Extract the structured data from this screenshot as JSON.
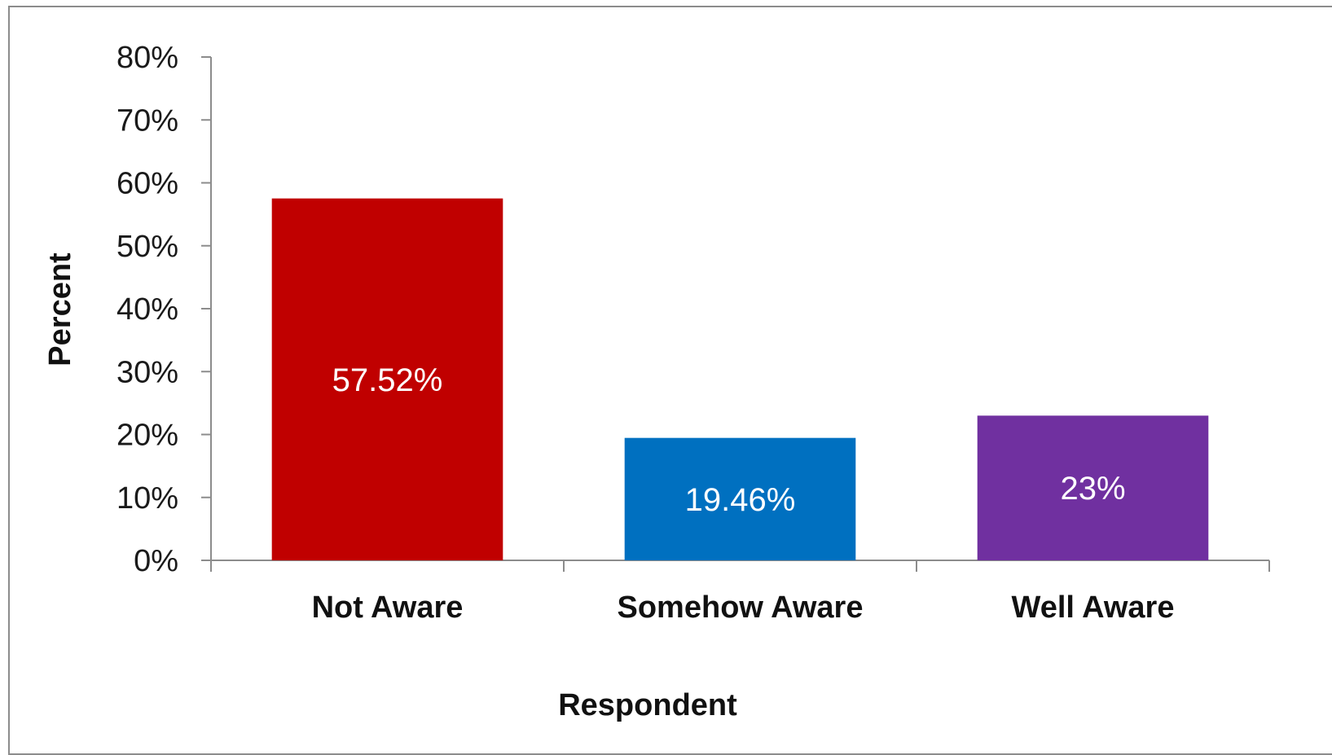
{
  "chart_data": {
    "type": "bar",
    "categories": [
      "Not Aware",
      "Somehow Aware",
      "Well Aware"
    ],
    "values": [
      57.52,
      19.46,
      23
    ],
    "data_labels": [
      "57.52%",
      "19.46%",
      "23%"
    ],
    "colors": [
      "#c00000",
      "#0070c0",
      "#7030a0"
    ],
    "title": "",
    "xlabel": "Respondent",
    "ylabel": "Percent",
    "ylim": [
      0,
      80
    ],
    "yticks": [
      "0%",
      "10%",
      "20%",
      "30%",
      "40%",
      "50%",
      "60%",
      "70%",
      "80%"
    ],
    "grid": false,
    "legend": "none"
  }
}
